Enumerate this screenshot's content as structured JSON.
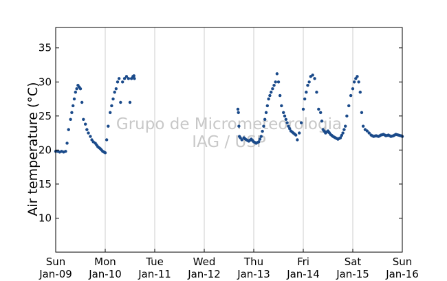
{
  "chart_data": {
    "type": "scatter",
    "ylabel": "Air temperature (°C)",
    "xlabel": "",
    "title": "",
    "ylim": [
      5,
      38
    ],
    "xlim": [
      0,
      7
    ],
    "yticks": [
      10,
      15,
      20,
      25,
      30,
      35
    ],
    "xticks": [
      {
        "day": "Sun",
        "date": "Jan-09"
      },
      {
        "day": "Mon",
        "date": "Jan-10"
      },
      {
        "day": "Tue",
        "date": "Jan-11"
      },
      {
        "day": "Wed",
        "date": "Jan-12"
      },
      {
        "day": "Thu",
        "date": "Jan-13"
      },
      {
        "day": "Fri",
        "date": "Jan-14"
      },
      {
        "day": "Sat",
        "date": "Jan-15"
      },
      {
        "day": "Sun",
        "date": "Jan-16"
      }
    ],
    "grid": "vertical",
    "marker_color": "#1a4a8a",
    "watermark": [
      "Grupo de Micrometeorologia",
      "IAG / USP"
    ],
    "series": [
      {
        "name": "",
        "x": [
          0.0,
          0.04,
          0.08,
          0.12,
          0.16,
          0.2,
          0.23,
          0.26,
          0.3,
          0.35,
          0.4,
          0.45,
          0.5,
          0.53,
          0.56,
          0.6,
          0.63,
          0.66,
          0.7,
          0.73,
          0.76,
          0.8,
          0.85,
          0.9,
          0.95,
          1.0,
          1.03,
          1.06,
          1.1,
          1.13,
          1.16,
          1.19,
          1.22,
          1.25,
          1.28,
          1.31,
          1.35,
          1.39,
          1.43,
          1.47,
          1.5,
          1.53,
          1.56,
          1.58,
          1.59
        ],
        "y": [
          19.8,
          19.8,
          19.7,
          19.8,
          19.7,
          19.8,
          21.0,
          23.0,
          24.5,
          26.5,
          28.5,
          29.5,
          29.0,
          27.0,
          24.5,
          23.8,
          23.0,
          22.5,
          22.0,
          21.5,
          21.2,
          21.0,
          20.5,
          20.2,
          19.8,
          19.6,
          21.5,
          23.5,
          25.5,
          26.5,
          27.5,
          28.5,
          29.0,
          30.0,
          30.5,
          27.0,
          30.0,
          30.5,
          30.8,
          30.5,
          27.0,
          30.5,
          30.8,
          30.9,
          30.5
        ]
      },
      {
        "name": "",
        "x": [
          3.68,
          3.69,
          3.7,
          3.71,
          3.73,
          3.76,
          3.8,
          3.85,
          3.9,
          3.95,
          4.0,
          4.05,
          4.1,
          4.15,
          4.2,
          4.25,
          4.3,
          4.35,
          4.38,
          4.41,
          4.44,
          4.47,
          4.5,
          4.53,
          4.56,
          4.6,
          4.65,
          4.7,
          4.75,
          4.8,
          4.85,
          4.88,
          4.92,
          4.96,
          5.0,
          5.03,
          5.06,
          5.09,
          5.12,
          5.15,
          5.19,
          5.23,
          5.27,
          5.31,
          5.35,
          5.4,
          5.45,
          5.5,
          5.55,
          5.6,
          5.65,
          5.7,
          5.75,
          5.8,
          5.85,
          5.88,
          5.92,
          5.96,
          6.0,
          6.03,
          6.06,
          6.09,
          6.12,
          6.15,
          6.18,
          6.21,
          6.25,
          6.29,
          6.33,
          6.37,
          6.42,
          6.47,
          6.52,
          6.57,
          6.62,
          6.67,
          6.72,
          6.77,
          6.82,
          6.87,
          6.92,
          6.97,
          7.0
        ],
        "y": [
          26.0,
          25.5,
          23.5,
          22.0,
          21.8,
          21.5,
          21.8,
          21.5,
          21.3,
          21.6,
          21.2,
          21.0,
          21.2,
          22.0,
          23.5,
          25.5,
          27.5,
          28.5,
          29.0,
          29.5,
          30.0,
          31.2,
          30.0,
          28.0,
          26.5,
          25.5,
          24.5,
          23.5,
          22.8,
          22.5,
          22.2,
          21.5,
          22.5,
          24.0,
          26.0,
          27.5,
          28.5,
          29.5,
          30.0,
          30.8,
          31.0,
          30.5,
          28.5,
          26.0,
          25.5,
          23.0,
          22.5,
          22.8,
          22.3,
          22.0,
          21.8,
          21.6,
          21.8,
          22.5,
          23.5,
          25.0,
          26.5,
          28.0,
          29.0,
          30.0,
          30.5,
          30.8,
          30.0,
          28.5,
          25.5,
          23.5,
          23.0,
          22.8,
          22.5,
          22.2,
          22.0,
          22.1,
          22.0,
          22.2,
          22.3,
          22.1,
          22.2,
          22.0,
          22.1,
          22.3,
          22.2,
          22.1,
          22.0
        ]
      }
    ]
  }
}
